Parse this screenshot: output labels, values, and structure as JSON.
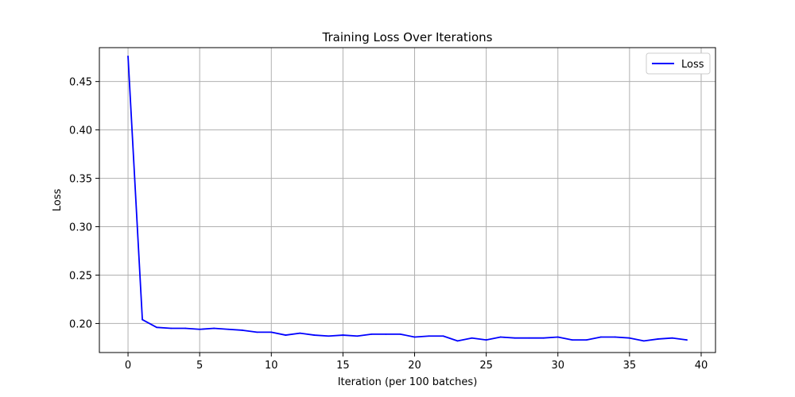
{
  "chart_data": {
    "type": "line",
    "title": "Training Loss Over Iterations",
    "xlabel": "Iteration (per 100 batches)",
    "ylabel": "Loss",
    "xlim": [
      -2,
      41
    ],
    "ylim": [
      0.17,
      0.485
    ],
    "xticks": [
      0,
      5,
      10,
      15,
      20,
      25,
      30,
      35,
      40
    ],
    "yticks": [
      0.2,
      0.25,
      0.3,
      0.35,
      0.4,
      0.45
    ],
    "ytick_labels": [
      "0.20",
      "0.25",
      "0.30",
      "0.35",
      "0.40",
      "0.45"
    ],
    "grid": true,
    "legend_position": "top-right",
    "x": [
      0,
      1,
      2,
      3,
      4,
      5,
      6,
      7,
      8,
      9,
      10,
      11,
      12,
      13,
      14,
      15,
      16,
      17,
      18,
      19,
      20,
      21,
      22,
      23,
      24,
      25,
      26,
      27,
      28,
      29,
      30,
      31,
      32,
      33,
      34,
      35,
      36,
      37,
      38,
      39
    ],
    "series": [
      {
        "name": "Loss",
        "color": "#0000ff",
        "values": [
          0.476,
          0.204,
          0.196,
          0.195,
          0.195,
          0.194,
          0.195,
          0.194,
          0.193,
          0.191,
          0.191,
          0.188,
          0.19,
          0.188,
          0.187,
          0.188,
          0.187,
          0.189,
          0.189,
          0.189,
          0.186,
          0.187,
          0.187,
          0.182,
          0.185,
          0.183,
          0.186,
          0.185,
          0.185,
          0.185,
          0.186,
          0.183,
          0.183,
          0.186,
          0.186,
          0.185,
          0.182,
          0.184,
          0.185,
          0.183
        ]
      }
    ]
  }
}
